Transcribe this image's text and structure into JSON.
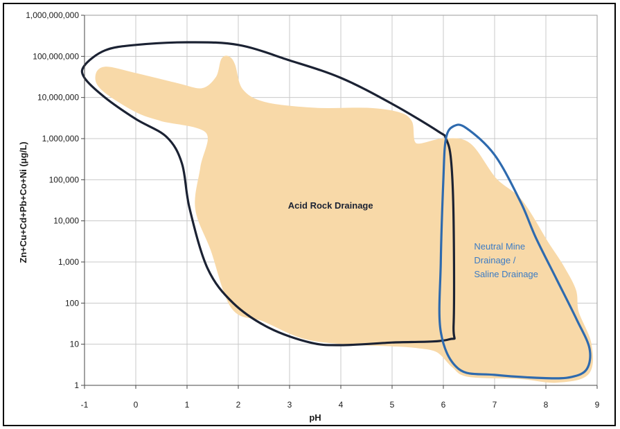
{
  "chart_data": {
    "type": "scatter",
    "title": "",
    "xlabel": "pH",
    "ylabel": "Zn+Cu+Cd+Pb+Co+Ni (μg/L)",
    "xlim": [
      -1,
      9
    ],
    "ylim": [
      1,
      1000000000
    ],
    "y_scale": "log",
    "grid": true,
    "x_ticks": [
      "-1",
      "0",
      "1",
      "2",
      "3",
      "4",
      "5",
      "6",
      "7",
      "8",
      "9"
    ],
    "y_ticks": [
      "1",
      "10",
      "100",
      "1,000",
      "10,000",
      "100,000",
      "1,000,000",
      "10,000,000",
      "100,000,000",
      "1,000,000,000"
    ],
    "regions": [
      {
        "name": "Acid Rock Drainage",
        "outline_color": "#1b2233",
        "label_color": "#1b2233",
        "label_lines": [
          "Acid Rock Drainage"
        ],
        "boundary": [
          [
            -1.0,
            60000000
          ],
          [
            -0.6,
            140000000
          ],
          [
            0.0,
            190000000
          ],
          [
            1.0,
            220000000
          ],
          [
            2.0,
            190000000
          ],
          [
            3.0,
            80000000
          ],
          [
            4.0,
            30000000
          ],
          [
            5.0,
            7000000
          ],
          [
            5.9,
            1500000
          ],
          [
            6.05,
            1000000
          ],
          [
            6.15,
            300000
          ],
          [
            6.2,
            10000
          ],
          [
            6.2,
            30
          ],
          [
            6.1,
            13
          ],
          [
            5.0,
            11
          ],
          [
            4.0,
            9.5
          ],
          [
            3.4,
            11
          ],
          [
            2.6,
            25
          ],
          [
            1.9,
            100
          ],
          [
            1.4,
            700
          ],
          [
            1.05,
            20000
          ],
          [
            0.9,
            250000
          ],
          [
            0.6,
            1100000
          ],
          [
            0.0,
            3000000
          ],
          [
            -0.6,
            10000000
          ],
          [
            -1.0,
            30000000
          ]
        ]
      },
      {
        "name": "Neutral Mine Drainage / Saline Drainage",
        "outline_color": "#2e6aae",
        "label_color": "#3b7bc4",
        "label_lines": [
          "Neutral Mine",
          "Drainage /",
          "Saline Drainage"
        ],
        "boundary": [
          [
            6.2,
            2000000
          ],
          [
            6.45,
            1800000
          ],
          [
            7.0,
            400000
          ],
          [
            7.5,
            30000
          ],
          [
            7.8,
            4000
          ],
          [
            8.2,
            400
          ],
          [
            8.6,
            40
          ],
          [
            8.85,
            8
          ],
          [
            8.8,
            2.5
          ],
          [
            8.5,
            1.6
          ],
          [
            8.0,
            1.5
          ],
          [
            7.0,
            1.8
          ],
          [
            6.3,
            2.5
          ],
          [
            5.95,
            20
          ],
          [
            5.95,
            1000
          ],
          [
            6.0,
            100000
          ],
          [
            6.05,
            1000000
          ]
        ]
      }
    ],
    "data_envelope": {
      "color": "#f8d9a8",
      "boundary": [
        [
          -0.75,
          30000000
        ],
        [
          -0.6,
          50000000
        ],
        [
          0.0,
          35000000
        ],
        [
          0.8,
          20000000
        ],
        [
          1.3,
          15000000
        ],
        [
          1.6,
          30000000
        ],
        [
          1.7,
          80000000
        ],
        [
          1.8,
          90000000
        ],
        [
          1.9,
          60000000
        ],
        [
          2.05,
          15000000
        ],
        [
          2.5,
          7000000
        ],
        [
          3.5,
          5000000
        ],
        [
          4.5,
          5000000
        ],
        [
          5.1,
          4000000
        ],
        [
          5.35,
          2500000
        ],
        [
          5.45,
          700000
        ],
        [
          6.0,
          900000
        ],
        [
          6.5,
          700000
        ],
        [
          7.0,
          100000
        ],
        [
          7.5,
          30000
        ],
        [
          8.0,
          3000
        ],
        [
          8.3,
          800
        ],
        [
          8.55,
          200
        ],
        [
          8.6,
          60
        ],
        [
          8.85,
          10
        ],
        [
          8.8,
          2
        ],
        [
          8.2,
          1.3
        ],
        [
          7.5,
          1.6
        ],
        [
          6.5,
          1.8
        ],
        [
          6.2,
          3
        ],
        [
          5.9,
          7
        ],
        [
          5.5,
          9
        ],
        [
          5.0,
          10
        ],
        [
          4.2,
          11
        ],
        [
          3.3,
          15
        ],
        [
          2.5,
          40
        ],
        [
          1.9,
          80
        ],
        [
          1.5,
          2000
        ],
        [
          1.2,
          20000
        ],
        [
          1.3,
          200000
        ],
        [
          1.4,
          1500000
        ],
        [
          0.5,
          3000000
        ],
        [
          0.0,
          5000000
        ],
        [
          -0.6,
          15000000
        ]
      ]
    }
  }
}
